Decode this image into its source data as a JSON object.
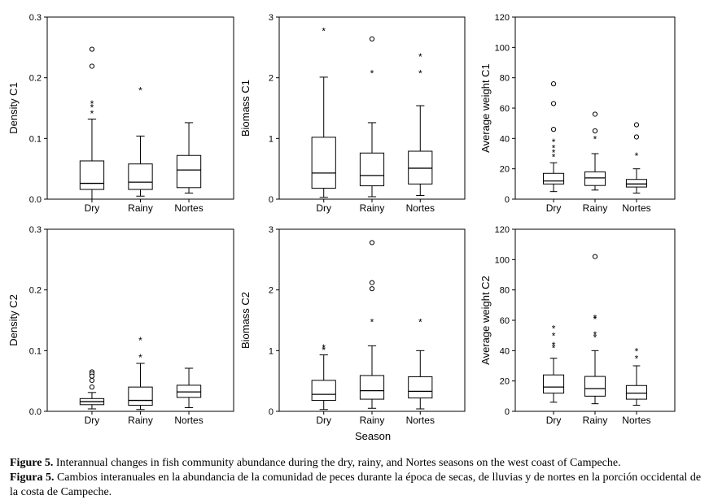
{
  "figure": {
    "x_axis_label": "Season",
    "chart_data": [
      {
        "type": "box",
        "ylabel": "Density C1",
        "ylim": [
          0,
          0.3
        ],
        "yticks": [
          "0.0",
          "0.1",
          "0.2",
          "0.3"
        ],
        "categories": [
          "Dry",
          "Rainy",
          "Nortes"
        ],
        "boxes": [
          {
            "min": 0.0,
            "q1": 0.016,
            "median": 0.026,
            "q3": 0.063,
            "max": 0.132
          },
          {
            "min": 0.005,
            "q1": 0.016,
            "median": 0.028,
            "q3": 0.058,
            "max": 0.104
          },
          {
            "min": 0.01,
            "q1": 0.019,
            "median": 0.048,
            "q3": 0.072,
            "max": 0.126
          }
        ],
        "outliers": [
          {
            "category": "Dry",
            "values": [
              0.247,
              0.219
            ],
            "marker": "circle"
          },
          {
            "category": "Dry",
            "values": [
              0.158,
              0.152,
              0.142
            ],
            "marker": "star"
          },
          {
            "category": "Rainy",
            "values": [
              0.18
            ],
            "marker": "star"
          }
        ]
      },
      {
        "type": "box",
        "ylabel": "Biomass C1",
        "ylim": [
          0,
          3
        ],
        "yticks": [
          "0",
          "1",
          "2",
          "3"
        ],
        "categories": [
          "Dry",
          "Rainy",
          "Nortes"
        ],
        "boxes": [
          {
            "min": 0.03,
            "q1": 0.18,
            "median": 0.43,
            "q3": 1.02,
            "max": 2.01
          },
          {
            "min": 0.04,
            "q1": 0.22,
            "median": 0.39,
            "q3": 0.76,
            "max": 1.26
          },
          {
            "min": 0.06,
            "q1": 0.25,
            "median": 0.51,
            "q3": 0.79,
            "max": 1.54
          }
        ],
        "outliers": [
          {
            "category": "Dry",
            "values": [
              2.78
            ],
            "marker": "star"
          },
          {
            "category": "Rainy",
            "values": [
              2.64
            ],
            "marker": "circle"
          },
          {
            "category": "Rainy",
            "values": [
              2.08
            ],
            "marker": "star"
          },
          {
            "category": "Nortes",
            "values": [
              2.36,
              2.08
            ],
            "marker": "star"
          }
        ]
      },
      {
        "type": "box",
        "ylabel": "Average weight C1",
        "ylim": [
          0,
          120
        ],
        "yticks": [
          "0",
          "20",
          "40",
          "60",
          "80",
          "100",
          "120"
        ],
        "categories": [
          "Dry",
          "Rainy",
          "Nortes"
        ],
        "boxes": [
          {
            "min": 5,
            "q1": 10,
            "median": 12,
            "q3": 17,
            "max": 24
          },
          {
            "min": 6,
            "q1": 9,
            "median": 14,
            "q3": 18,
            "max": 30
          },
          {
            "min": 4,
            "q1": 8,
            "median": 10,
            "q3": 13,
            "max": 20
          }
        ],
        "outliers": [
          {
            "category": "Dry",
            "values": [
              76,
              63,
              46
            ],
            "marker": "circle"
          },
          {
            "category": "Dry",
            "values": [
              38,
              34,
              31,
              28
            ],
            "marker": "star"
          },
          {
            "category": "Rainy",
            "values": [
              56,
              45
            ],
            "marker": "circle"
          },
          {
            "category": "Rainy",
            "values": [
              40
            ],
            "marker": "star"
          },
          {
            "category": "Nortes",
            "values": [
              49,
              41
            ],
            "marker": "circle"
          },
          {
            "category": "Nortes",
            "values": [
              29
            ],
            "marker": "star"
          }
        ]
      },
      {
        "type": "box",
        "ylabel": "Density C2",
        "ylim": [
          0,
          0.3
        ],
        "yticks": [
          "0.0",
          "0.1",
          "0.2",
          "0.3"
        ],
        "categories": [
          "Dry",
          "Rainy",
          "Nortes"
        ],
        "boxes": [
          {
            "min": 0.004,
            "q1": 0.011,
            "median": 0.016,
            "q3": 0.021,
            "max": 0.031
          },
          {
            "min": 0.003,
            "q1": 0.01,
            "median": 0.018,
            "q3": 0.04,
            "max": 0.079
          },
          {
            "min": 0.006,
            "q1": 0.023,
            "median": 0.032,
            "q3": 0.043,
            "max": 0.071
          }
        ],
        "outliers": [
          {
            "category": "Dry",
            "values": [
              0.065,
              0.062,
              0.058,
              0.051,
              0.04
            ],
            "marker": "circle"
          },
          {
            "category": "Rainy",
            "values": [
              0.118,
              0.09
            ],
            "marker": "star"
          }
        ]
      },
      {
        "type": "box",
        "ylabel": "Biomass C2",
        "ylim": [
          0,
          3
        ],
        "yticks": [
          "0",
          "1",
          "2",
          "3"
        ],
        "categories": [
          "Dry",
          "Rainy",
          "Nortes"
        ],
        "boxes": [
          {
            "min": 0.03,
            "q1": 0.18,
            "median": 0.28,
            "q3": 0.51,
            "max": 0.93
          },
          {
            "min": 0.05,
            "q1": 0.2,
            "median": 0.34,
            "q3": 0.59,
            "max": 1.08
          },
          {
            "min": 0.04,
            "q1": 0.22,
            "median": 0.33,
            "q3": 0.57,
            "max": 1.0
          }
        ],
        "outliers": [
          {
            "category": "Dry",
            "values": [
              1.06,
              1.02
            ],
            "marker": "star"
          },
          {
            "category": "Rainy",
            "values": [
              2.78,
              2.12,
              2.02
            ],
            "marker": "circle"
          },
          {
            "category": "Rainy",
            "values": [
              1.48
            ],
            "marker": "star"
          },
          {
            "category": "Nortes",
            "values": [
              1.48
            ],
            "marker": "star"
          }
        ]
      },
      {
        "type": "box",
        "ylabel": "Average weight C2",
        "ylim": [
          0,
          120
        ],
        "yticks": [
          "0",
          "20",
          "40",
          "60",
          "80",
          "100",
          "120"
        ],
        "categories": [
          "Dry",
          "Rainy",
          "Nortes"
        ],
        "boxes": [
          {
            "min": 6,
            "q1": 12,
            "median": 16,
            "q3": 24,
            "max": 35
          },
          {
            "min": 5,
            "q1": 10,
            "median": 15,
            "q3": 23,
            "max": 40
          },
          {
            "min": 4,
            "q1": 8,
            "median": 12,
            "q3": 17,
            "max": 30
          }
        ],
        "outliers": [
          {
            "category": "Dry",
            "values": [
              55,
              50,
              44,
              42
            ],
            "marker": "star"
          },
          {
            "category": "Rainy",
            "values": [
              102
            ],
            "marker": "circle"
          },
          {
            "category": "Rainy",
            "values": [
              62,
              61,
              51,
              49
            ],
            "marker": "star"
          },
          {
            "category": "Nortes",
            "values": [
              40,
              35
            ],
            "marker": "star"
          }
        ]
      }
    ]
  },
  "captions": {
    "en_label": "Figure 5.",
    "en_text": " Interannual changes in fish community abundance during the dry, rainy, and Nortes seasons on the west coast of Campeche.",
    "es_label": "Figura 5.",
    "es_text": " Cambios interanuales en la abundancia de la comunidad de peces durante la época de secas, de lluvias y de nortes en la porción occidental de la costa de Campeche."
  }
}
